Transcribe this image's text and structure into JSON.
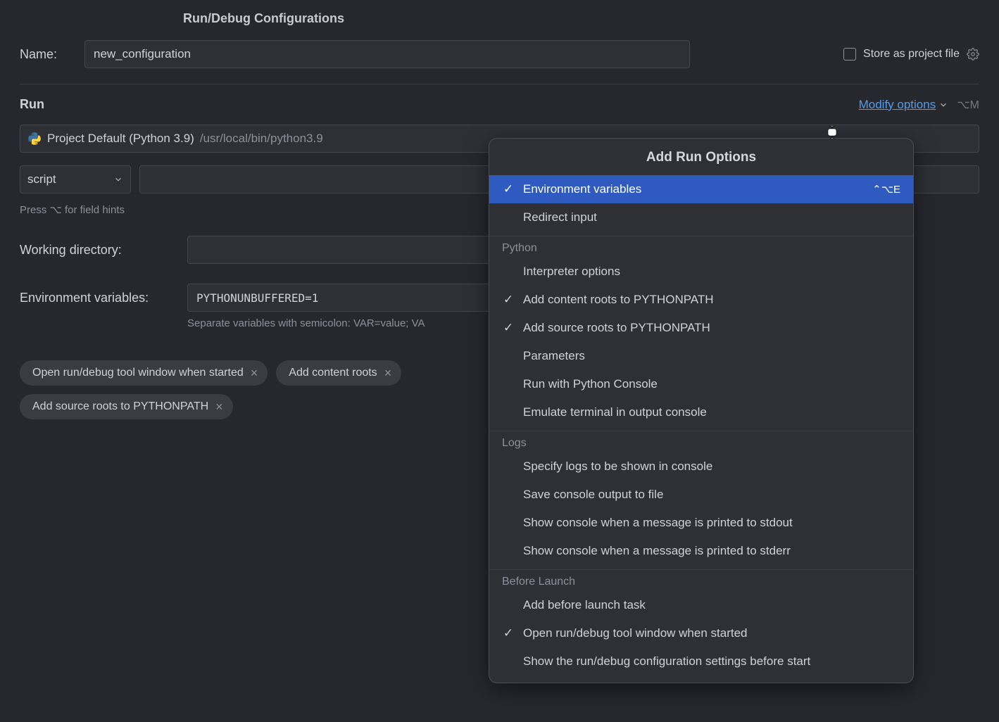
{
  "colors": {
    "background": "#27282e",
    "panel": "#2e3036",
    "border": "#44474f",
    "text": "#d0d2d6",
    "dim": "#8c909a",
    "link": "#4d9df0",
    "selected": "#2f5abf",
    "chip": "#3a3c43"
  },
  "header": {
    "title": "Run/Debug Configurations"
  },
  "name": {
    "label": "Name:",
    "value": "new_configuration"
  },
  "store_project": {
    "label": "Store as project file",
    "checked": false
  },
  "section": {
    "run_title": "Run",
    "modify_link": "Modify options",
    "modify_shortcut": "⌥M"
  },
  "interpreter": {
    "icon": "python-icon",
    "name": "Project Default (Python 3.9)",
    "path": "/usr/local/bin/python3.9"
  },
  "script": {
    "dropdown_label": "script",
    "path_value": ""
  },
  "hints": {
    "field_hints": "Press ⌥ for field hints",
    "env_sep": "Separate variables with semicolon: VAR=value; VA"
  },
  "working_dir": {
    "label": "Working directory:",
    "value": ""
  },
  "env": {
    "label": "Environment variables:",
    "value": "PYTHONUNBUFFERED=1"
  },
  "chips": [
    {
      "label": "Open run/debug tool window when started"
    },
    {
      "label": "Add content roots"
    },
    {
      "label": "Add source roots to PYTHONPATH"
    }
  ],
  "popup": {
    "title": "Add Run Options",
    "groups": [
      {
        "header": null,
        "items": [
          {
            "label": "Environment variables",
            "checked": true,
            "selected": true,
            "shortcut": "⌃⌥E"
          },
          {
            "label": "Redirect input",
            "checked": false
          }
        ]
      },
      {
        "header": "Python",
        "items": [
          {
            "label": "Interpreter options",
            "checked": false
          },
          {
            "label": "Add content roots to PYTHONPATH",
            "checked": true
          },
          {
            "label": "Add source roots to PYTHONPATH",
            "checked": true
          },
          {
            "label": "Parameters",
            "checked": false
          },
          {
            "label": "Run with Python Console",
            "checked": false
          },
          {
            "label": "Emulate terminal in output console",
            "checked": false
          }
        ]
      },
      {
        "header": "Logs",
        "items": [
          {
            "label": "Specify logs to be shown in console",
            "checked": false
          },
          {
            "label": "Save console output to file",
            "checked": false
          },
          {
            "label": "Show console when a message is printed to stdout",
            "checked": false
          },
          {
            "label": "Show console when a message is printed to stderr",
            "checked": false
          }
        ]
      },
      {
        "header": "Before Launch",
        "items": [
          {
            "label": "Add before launch task",
            "checked": false
          },
          {
            "label": "Open run/debug tool window when started",
            "checked": true
          },
          {
            "label": "Show the run/debug configuration settings before start",
            "checked": false
          }
        ]
      }
    ]
  }
}
